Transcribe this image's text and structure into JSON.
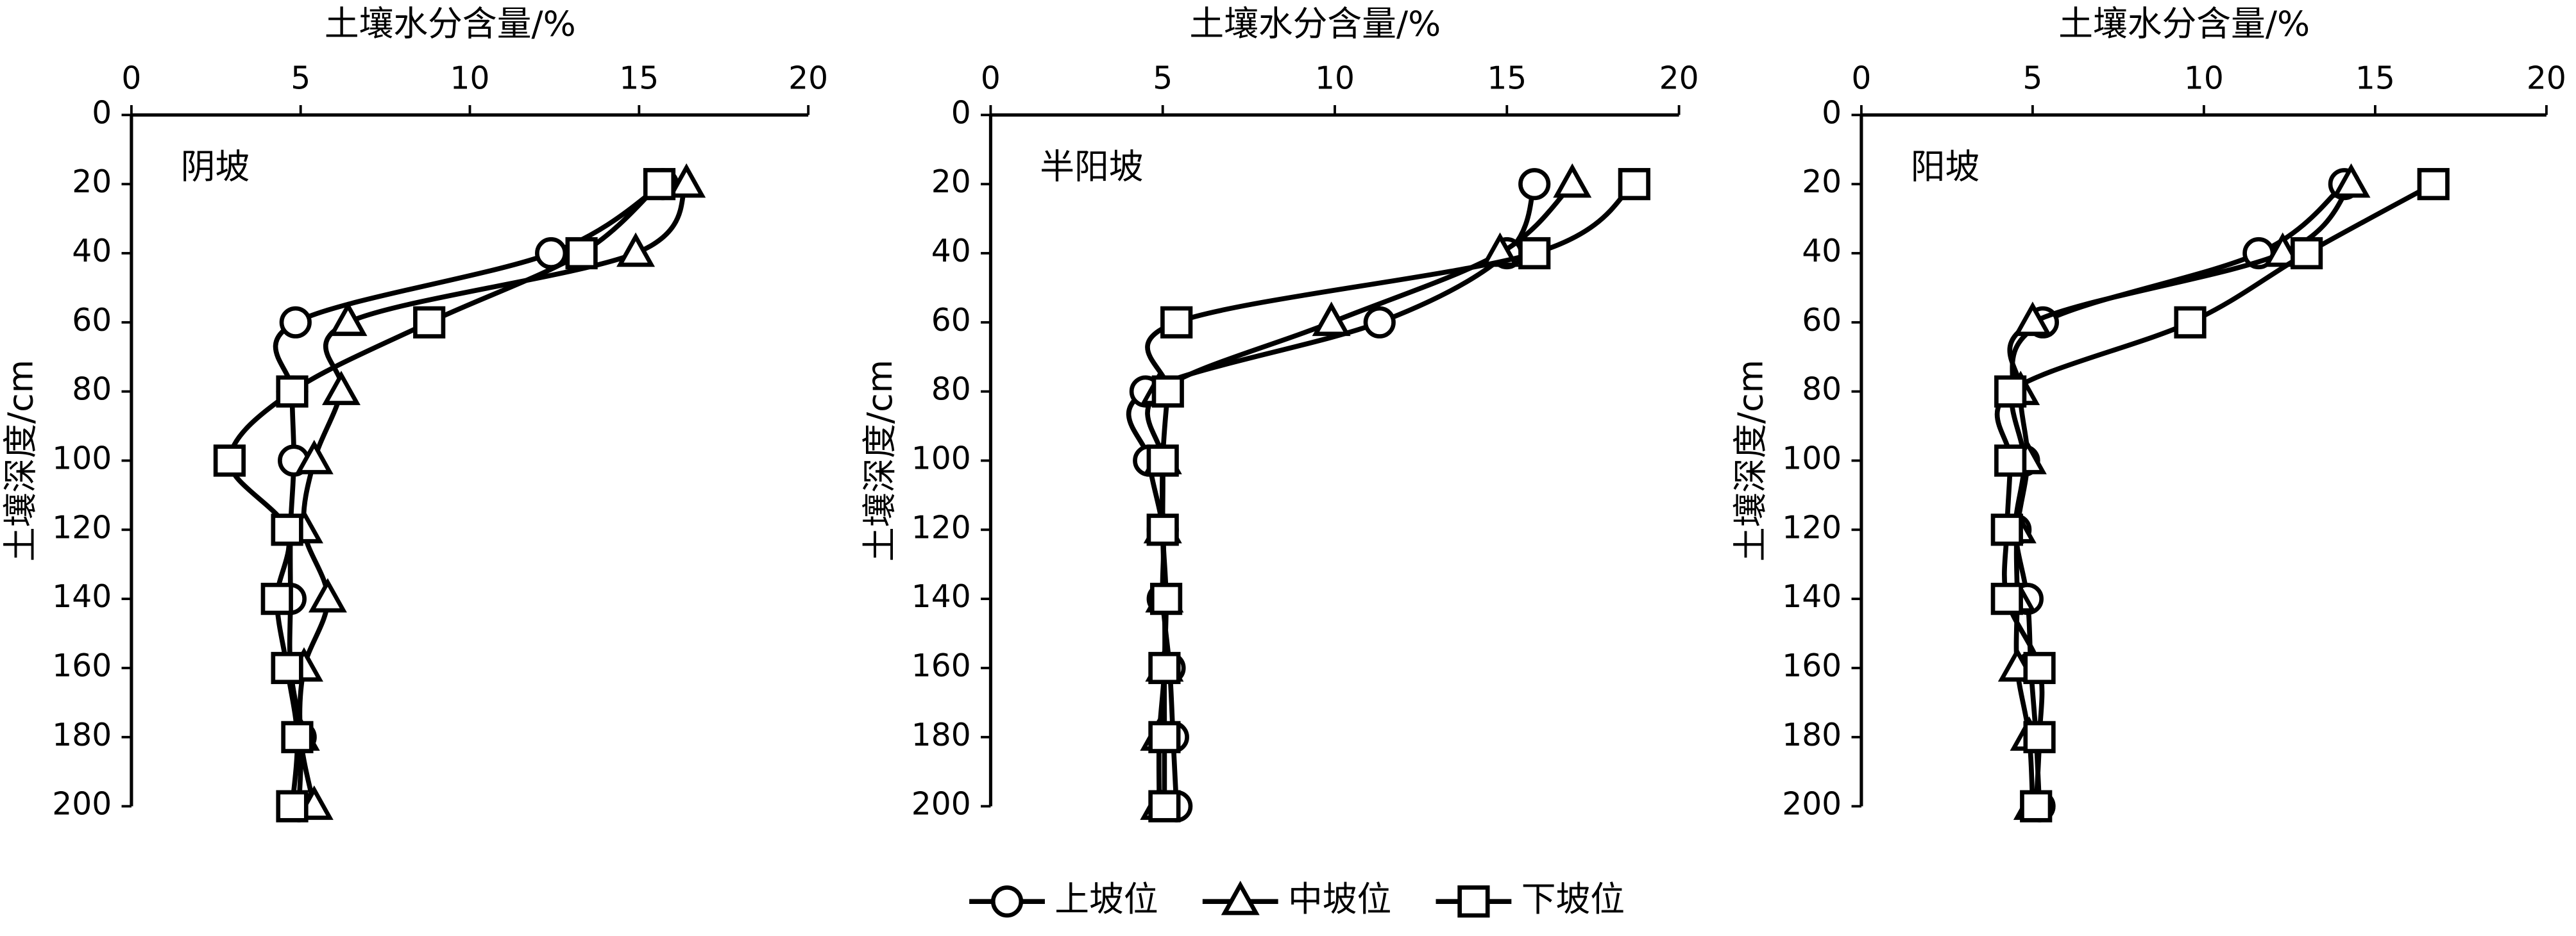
{
  "chart_data": [
    {
      "type": "line",
      "title": "阴坡",
      "x_label": "土壤水分含量/%",
      "y_label": "土壤深度/cm",
      "y": [
        20,
        40,
        60,
        80,
        100,
        120,
        140,
        160,
        180,
        200
      ],
      "xlim": [
        0,
        20
      ],
      "xticks": [
        0,
        5,
        10,
        15,
        20
      ],
      "ylim": [
        0,
        200
      ],
      "yticks": [
        0,
        20,
        40,
        60,
        80,
        100,
        120,
        140,
        160,
        180,
        200
      ],
      "y_inverted": true,
      "series": [
        {
          "name": "上坡位",
          "marker": "circle",
          "color": "#000000",
          "values": [
            15.7,
            12.4,
            4.85,
            4.75,
            4.8,
            4.7,
            4.7,
            4.7,
            5.0,
            4.95
          ]
        },
        {
          "name": "中坡位",
          "marker": "triangle",
          "color": "#000000",
          "values": [
            16.4,
            14.9,
            6.4,
            6.2,
            5.4,
            5.1,
            5.8,
            5.1,
            5.0,
            5.4
          ]
        },
        {
          "name": "下坡位",
          "marker": "square",
          "color": "#000000",
          "values": [
            15.6,
            13.3,
            8.8,
            4.75,
            2.9,
            4.6,
            4.3,
            4.6,
            4.9,
            4.75
          ]
        }
      ]
    },
    {
      "type": "line",
      "title": "半阳坡",
      "x_label": "土壤水分含量/%",
      "y_label": "土壤深度/cm",
      "y": [
        20,
        40,
        60,
        80,
        100,
        120,
        140,
        160,
        180,
        200
      ],
      "xlim": [
        0,
        20
      ],
      "xticks": [
        0,
        5,
        10,
        15,
        20
      ],
      "ylim": [
        0,
        200
      ],
      "yticks": [
        0,
        20,
        40,
        60,
        80,
        100,
        120,
        140,
        160,
        180,
        200
      ],
      "y_inverted": true,
      "series": [
        {
          "name": "上坡位",
          "marker": "circle",
          "color": "#000000",
          "values": [
            15.8,
            15.0,
            11.3,
            4.5,
            4.6,
            5.0,
            5.0,
            5.2,
            5.3,
            5.4
          ]
        },
        {
          "name": "中坡位",
          "marker": "triangle",
          "color": "#000000",
          "values": [
            16.9,
            14.8,
            9.9,
            4.9,
            5.0,
            5.0,
            5.05,
            5.05,
            4.9,
            4.9
          ]
        },
        {
          "name": "下坡位",
          "marker": "square",
          "color": "#000000",
          "values": [
            18.7,
            15.8,
            5.4,
            5.15,
            5.0,
            5.0,
            5.1,
            5.05,
            5.05,
            5.05
          ]
        }
      ]
    },
    {
      "type": "line",
      "title": "阳坡",
      "x_label": "土壤水分含量/%",
      "y_label": "土壤深度/cm",
      "y": [
        20,
        40,
        60,
        80,
        100,
        120,
        140,
        160,
        180,
        200
      ],
      "xlim": [
        0,
        20
      ],
      "xticks": [
        0,
        5,
        10,
        15,
        20
      ],
      "ylim": [
        0,
        200
      ],
      "yticks": [
        0,
        20,
        40,
        60,
        80,
        100,
        120,
        140,
        160,
        180,
        200
      ],
      "y_inverted": true,
      "series": [
        {
          "name": "上坡位",
          "marker": "circle",
          "color": "#000000",
          "values": [
            14.1,
            11.6,
            5.3,
            4.4,
            4.75,
            4.5,
            4.85,
            4.95,
            5.1,
            5.2
          ]
        },
        {
          "name": "中坡位",
          "marker": "triangle",
          "color": "#000000",
          "values": [
            14.3,
            12.3,
            5.0,
            4.65,
            4.85,
            4.55,
            4.55,
            4.55,
            4.9,
            5.0
          ]
        },
        {
          "name": "下坡位",
          "marker": "square",
          "color": "#000000",
          "values": [
            16.7,
            13.0,
            9.6,
            4.35,
            4.35,
            4.25,
            4.25,
            5.2,
            5.2,
            5.1
          ]
        }
      ]
    }
  ]
}
